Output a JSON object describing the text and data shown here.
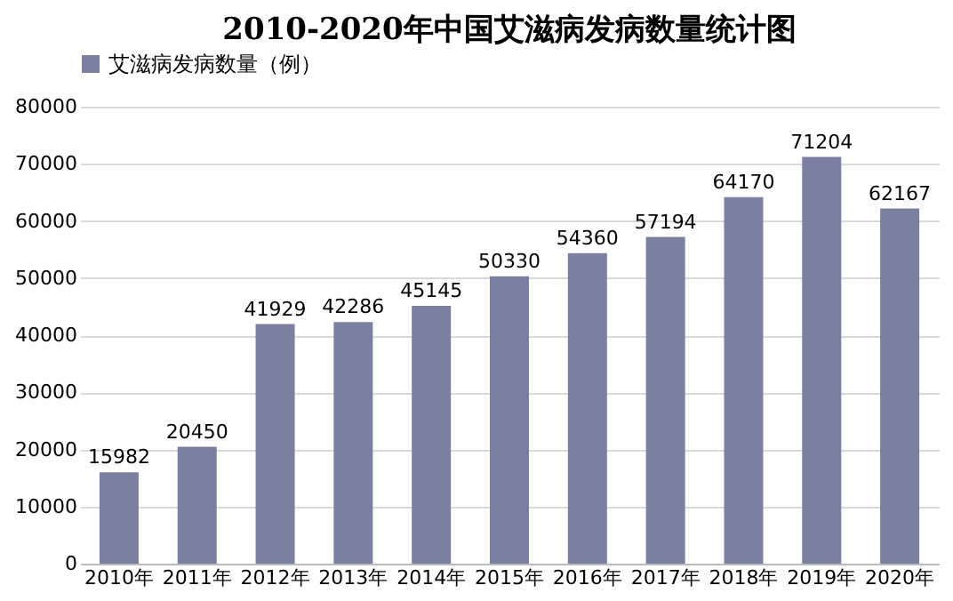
{
  "chart_data": {
    "type": "bar",
    "title": "2010-2020年中国艾滋病发病数量统计图",
    "categories": [
      "2010年",
      "2011年",
      "2012年",
      "2013年",
      "2014年",
      "2015年",
      "2016年",
      "2017年",
      "2018年",
      "2019年",
      "2020年"
    ],
    "series": [
      {
        "name": "艾滋病发病数量（例）",
        "color": "#7b7fa0",
        "values": [
          15982,
          20450,
          41929,
          42286,
          45145,
          50330,
          54360,
          57194,
          64170,
          71204,
          62167
        ]
      }
    ],
    "ylim": [
      0,
      80000
    ],
    "yticks": [
      0,
      10000,
      20000,
      30000,
      40000,
      50000,
      60000,
      70000,
      80000
    ],
    "grid": "y",
    "legend": "top",
    "data_labels": true
  }
}
